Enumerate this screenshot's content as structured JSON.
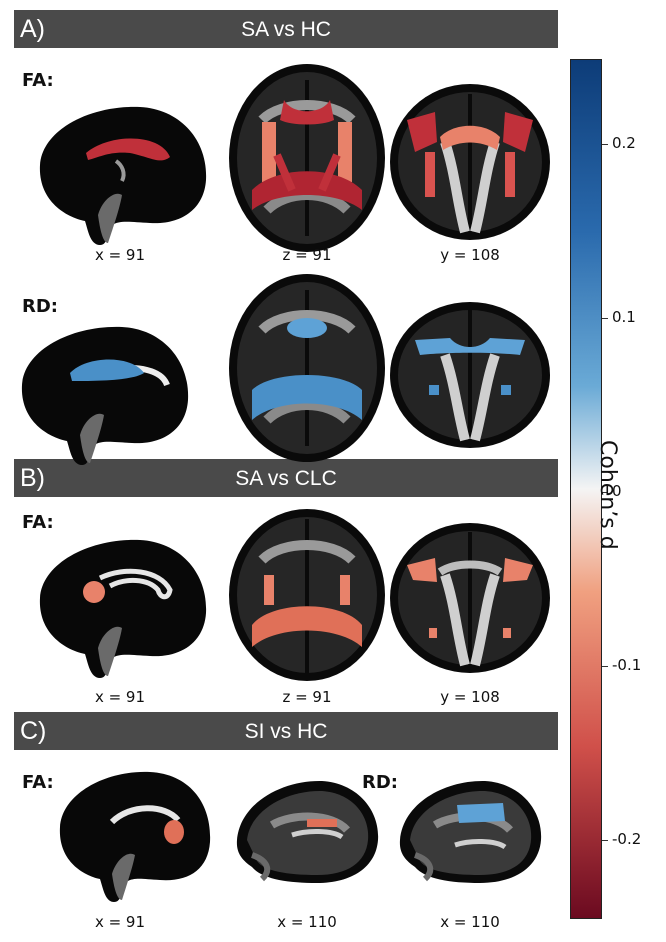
{
  "sections": [
    {
      "letter": "A)",
      "title": "SA vs HC"
    },
    {
      "letter": "B)",
      "title": "SA vs CLC"
    },
    {
      "letter": "C)",
      "title": "SI vs HC"
    }
  ],
  "metrics": {
    "a_fa": "FA:",
    "a_rd": "RD:",
    "b_fa": "FA:",
    "c_fa": "FA:",
    "c_rd": "RD:"
  },
  "coords": {
    "a_fa": [
      "x = 91",
      "z = 91",
      "y = 108"
    ],
    "b_fa": [
      "x = 91",
      "z = 91",
      "y = 108"
    ],
    "c": [
      "x = 91",
      "x = 110",
      "x = 110"
    ]
  },
  "colorbar": {
    "label": "Cohen’s d",
    "ticks": [
      "0.2",
      "0.1",
      "0",
      "-0.1",
      "-0.2"
    ],
    "colors": {
      "top": "#0d3c78",
      "bottom": "#6b0a20",
      "mid": "#f4f4f4"
    }
  },
  "colors": {
    "banner": "#4a4a4a",
    "red_dark": "#c0303a",
    "red_mid": "#d9534f",
    "salmon": "#e8826a",
    "blue": "#4a90c8",
    "blue_light": "#5ea2d6"
  }
}
